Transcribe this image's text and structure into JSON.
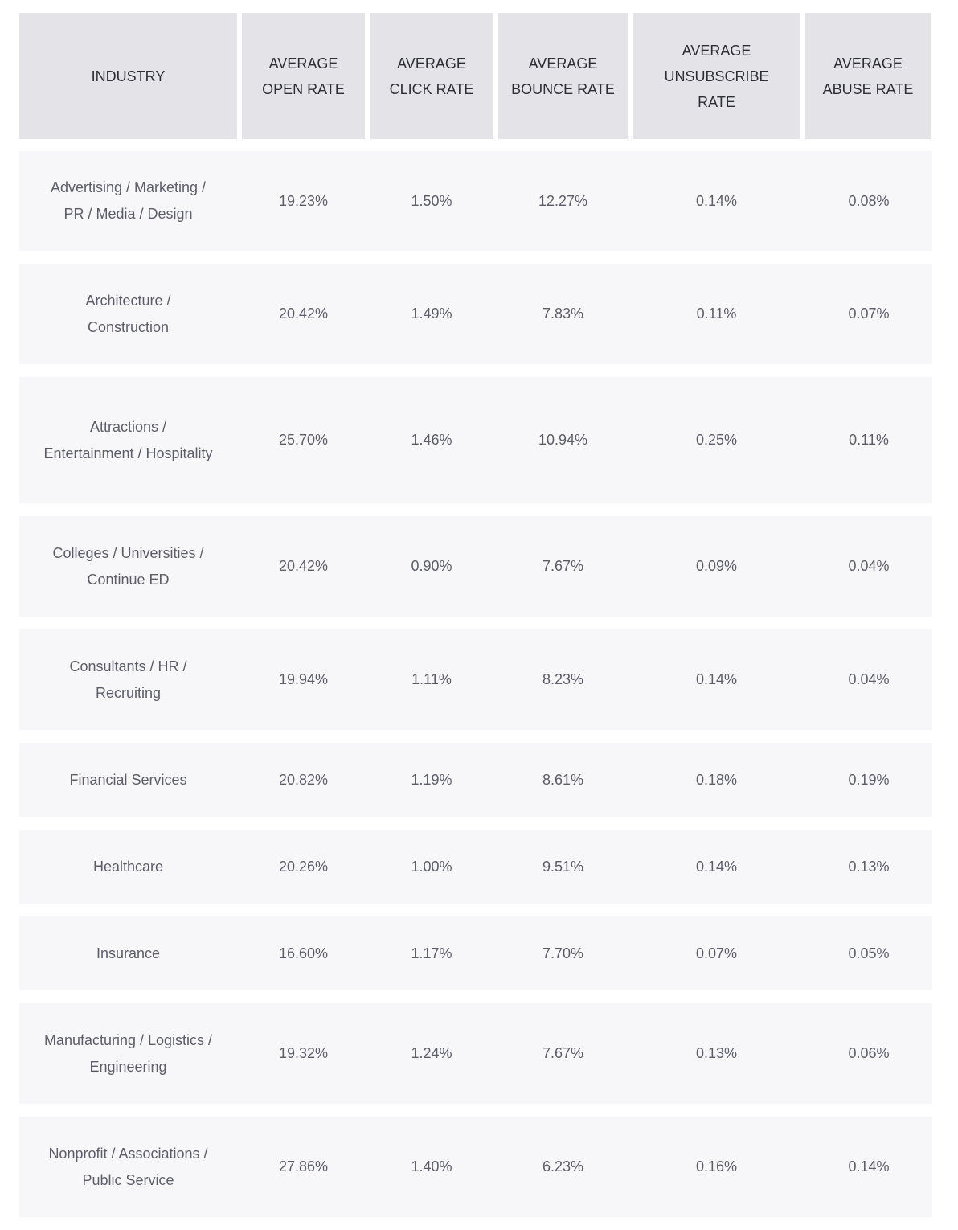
{
  "table": {
    "header": [
      "INDUSTRY",
      "AVERAGE OPEN RATE",
      "AVERAGE CLICK RATE",
      "AVERAGE BOUNCE RATE",
      "AVERAGE UNSUBSCRIBE RATE",
      "AVERAGE ABUSE RATE"
    ],
    "rows": [
      [
        "Advertising / Marketing / PR / Media / Design",
        "19.23%",
        "1.50%",
        "12.27%",
        "0.14%",
        "0.08%"
      ],
      [
        "Architecture / Construction",
        "20.42%",
        "1.49%",
        "7.83%",
        "0.11%",
        "0.07%"
      ],
      [
        "Attractions / Entertainment / Hospitality",
        "25.70%",
        "1.46%",
        "10.94%",
        "0.25%",
        "0.11%"
      ],
      [
        "Colleges / Universities / Continue ED",
        "20.42%",
        "0.90%",
        "7.67%",
        "0.09%",
        "0.04%"
      ],
      [
        "Consultants / HR / Recruiting",
        "19.94%",
        "1.11%",
        "8.23%",
        "0.14%",
        "0.04%"
      ],
      [
        "Financial Services",
        "20.82%",
        "1.19%",
        "8.61%",
        "0.18%",
        "0.19%"
      ],
      [
        "Healthcare",
        "20.26%",
        "1.00%",
        "9.51%",
        "0.14%",
        "0.13%"
      ],
      [
        "Insurance",
        "16.60%",
        "1.17%",
        "7.70%",
        "0.07%",
        "0.05%"
      ],
      [
        "Manufacturing / Logistics / Engineering",
        "19.32%",
        "1.24%",
        "7.67%",
        "0.13%",
        "0.06%"
      ],
      [
        "Nonprofit / Associations / Public Service",
        "27.86%",
        "1.40%",
        "6.23%",
        "0.16%",
        "0.14%"
      ]
    ]
  }
}
